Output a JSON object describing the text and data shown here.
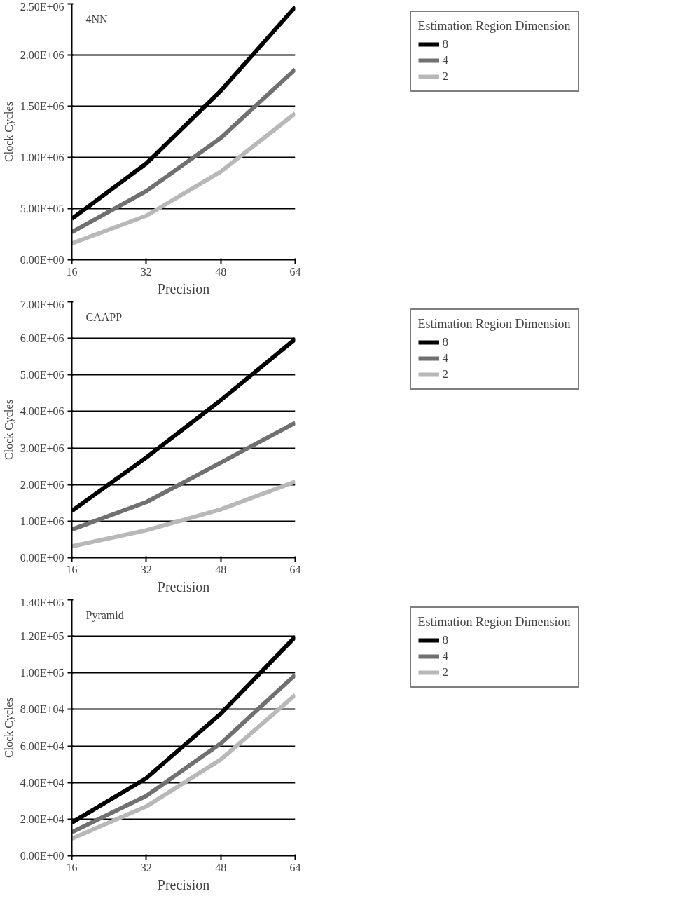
{
  "chart_data": [
    {
      "type": "line",
      "annotations": [
        "4NN"
      ],
      "xlabel": "Precision",
      "ylabel": "Clock Cycles",
      "legend_title": "Estimation Region Dimension",
      "x": [
        16,
        32,
        48,
        64
      ],
      "xlim": [
        16,
        64
      ],
      "xticks": [
        16,
        32,
        48,
        64
      ],
      "ylim": [
        0,
        2500000
      ],
      "yticks": [
        {
          "value": 0,
          "label": "0.00E+00"
        },
        {
          "value": 500000,
          "label": "5.00E+05"
        },
        {
          "value": 1000000,
          "label": "1.00E+06"
        },
        {
          "value": 1500000,
          "label": "1.50E+06"
        },
        {
          "value": 2000000,
          "label": "2.00E+06"
        },
        {
          "value": 2500000,
          "label": "2.50E+06"
        }
      ],
      "grid": "y",
      "legend": "right",
      "series": [
        {
          "name": "8",
          "color": "#000000",
          "values": [
            400000,
            940000,
            1650000,
            2470000
          ]
        },
        {
          "name": "4",
          "color": "#707070",
          "values": [
            270000,
            670000,
            1190000,
            1860000
          ]
        },
        {
          "name": "2",
          "color": "#b8b8b8",
          "values": [
            160000,
            430000,
            860000,
            1430000
          ]
        }
      ]
    },
    {
      "type": "line",
      "annotations": [
        "CAAPP"
      ],
      "xlabel": "Precision",
      "ylabel": "Clock Cycles",
      "legend_title": "Estimation Region Dimension",
      "x": [
        16,
        32,
        48,
        64
      ],
      "xlim": [
        16,
        64
      ],
      "xticks": [
        16,
        32,
        48,
        64
      ],
      "ylim": [
        0,
        7000000
      ],
      "yticks": [
        {
          "value": 0,
          "label": "0.00E+00"
        },
        {
          "value": 1000000,
          "label": "1.00E+06"
        },
        {
          "value": 2000000,
          "label": "2.00E+06"
        },
        {
          "value": 3000000,
          "label": "3.00E+06"
        },
        {
          "value": 4000000,
          "label": "4.00E+06"
        },
        {
          "value": 5000000,
          "label": "5.00E+06"
        },
        {
          "value": 6000000,
          "label": "6.00E+06"
        },
        {
          "value": 7000000,
          "label": "7.00E+06"
        }
      ],
      "grid": "y",
      "legend": "right",
      "series": [
        {
          "name": "8",
          "color": "#000000",
          "values": [
            1280000,
            2740000,
            4310000,
            5980000
          ]
        },
        {
          "name": "4",
          "color": "#707070",
          "values": [
            770000,
            1520000,
            2600000,
            3690000
          ]
        },
        {
          "name": "2",
          "color": "#b8b8b8",
          "values": [
            310000,
            750000,
            1320000,
            2080000
          ]
        }
      ]
    },
    {
      "type": "line",
      "annotations": [
        "Pyramid"
      ],
      "xlabel": "Precision",
      "ylabel": "Clock Cycles",
      "legend_title": "Estimation Region Dimension",
      "x": [
        16,
        32,
        48,
        64
      ],
      "xlim": [
        16,
        64
      ],
      "xticks": [
        16,
        32,
        48,
        64
      ],
      "ylim": [
        0,
        140000
      ],
      "yticks": [
        {
          "value": 0,
          "label": "0.00E+00"
        },
        {
          "value": 20000,
          "label": "2.00E+04"
        },
        {
          "value": 40000,
          "label": "4.00E+04"
        },
        {
          "value": 60000,
          "label": "6.00E+04"
        },
        {
          "value": 80000,
          "label": "8.00E+04"
        },
        {
          "value": 100000,
          "label": "1.00E+05"
        },
        {
          "value": 120000,
          "label": "1.20E+05"
        },
        {
          "value": 140000,
          "label": "1.40E+05"
        }
      ],
      "grid": "y",
      "legend": "right",
      "series": [
        {
          "name": "8",
          "color": "#000000",
          "values": [
            18100,
            42400,
            77700,
            119700
          ]
        },
        {
          "name": "4",
          "color": "#707070",
          "values": [
            12800,
            32700,
            61400,
            98900
          ]
        },
        {
          "name": "2",
          "color": "#b8b8b8",
          "values": [
            9300,
            26900,
            52600,
            87900
          ]
        }
      ]
    }
  ]
}
